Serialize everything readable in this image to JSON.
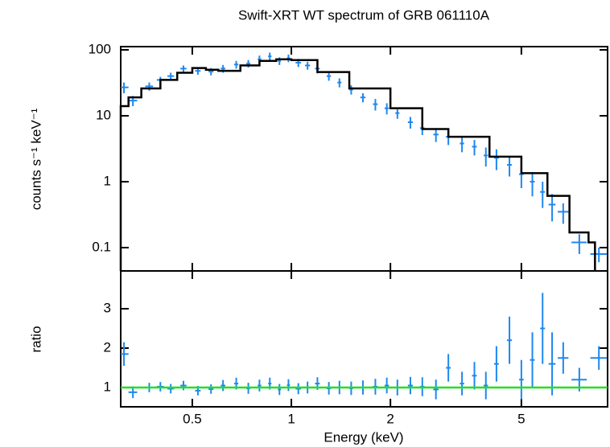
{
  "chart_data": [
    {
      "type": "spectrum",
      "title": "Swift-XRT WT spectrum of GRB 061110A",
      "ylabel": "counts s⁻¹ keV⁻¹",
      "xlog": true,
      "ylog": true,
      "ylim": [
        0.0443,
        112
      ],
      "yticks": [
        0.1,
        1,
        10,
        100
      ],
      "data": {
        "color": "#1e88f0",
        "x": [
          0.31,
          0.33,
          0.37,
          0.4,
          0.43,
          0.47,
          0.52,
          0.57,
          0.62,
          0.68,
          0.74,
          0.8,
          0.86,
          0.92,
          0.98,
          1.05,
          1.12,
          1.2,
          1.3,
          1.4,
          1.52,
          1.65,
          1.8,
          1.95,
          2.1,
          2.3,
          2.5,
          2.75,
          3.0,
          3.3,
          3.6,
          3.9,
          4.2,
          4.6,
          5.0,
          5.4,
          5.8,
          6.2,
          6.7,
          7.5,
          8.6
        ],
        "xerr": [
          0.01,
          0.01,
          0.01,
          0.01,
          0.01,
          0.01,
          0.01,
          0.01,
          0.01,
          0.01,
          0.01,
          0.01,
          0.01,
          0.01,
          0.01,
          0.02,
          0.02,
          0.02,
          0.02,
          0.02,
          0.02,
          0.03,
          0.03,
          0.03,
          0.03,
          0.04,
          0.04,
          0.05,
          0.05,
          0.05,
          0.06,
          0.06,
          0.07,
          0.08,
          0.08,
          0.09,
          0.1,
          0.15,
          0.25,
          0.4,
          0.5
        ],
        "values": [
          27,
          17,
          28,
          35,
          40,
          52,
          48,
          47,
          52,
          60,
          62,
          72,
          80,
          68,
          75,
          64,
          58,
          52,
          40,
          32,
          25,
          19,
          15,
          13,
          11,
          8,
          6.5,
          5.2,
          4.8,
          3.8,
          3.4,
          2.5,
          2.3,
          1.8,
          1.3,
          1.0,
          0.7,
          0.45,
          0.35,
          0.12,
          0.08
        ],
        "errors": [
          5,
          3,
          4,
          4,
          5,
          6,
          6,
          6,
          7,
          8,
          8,
          10,
          11,
          9,
          10,
          9,
          8,
          8,
          6,
          5,
          4,
          3,
          3,
          2.5,
          2,
          1.6,
          1.4,
          1.2,
          1.2,
          1.0,
          0.9,
          0.8,
          0.8,
          0.6,
          0.5,
          0.4,
          0.3,
          0.2,
          0.12,
          0.04,
          0.02
        ]
      },
      "model": {
        "color": "#000000",
        "x": [
          0.303,
          0.32,
          0.35,
          0.4,
          0.45,
          0.5,
          0.55,
          0.6,
          0.7,
          0.8,
          0.9,
          1.0,
          1.2,
          1.5,
          2.0,
          2.5,
          3,
          4,
          5,
          6,
          7,
          8
        ],
        "values": [
          14,
          19,
          26,
          35,
          45,
          53,
          50,
          48,
          58,
          68,
          72,
          70,
          46,
          26,
          13,
          6.3,
          4.8,
          2.4,
          1.35,
          0.61,
          0.17,
          0.12
        ]
      }
    },
    {
      "type": "ratio",
      "xlabel": "Energy (keV)",
      "ylabel": "ratio",
      "xlog": true,
      "xlim": [
        0.303,
        9.14
      ],
      "xticks": [
        0.5,
        1,
        2,
        5
      ],
      "ylim": [
        0.51,
        3.96
      ],
      "yticks": [
        1,
        2,
        3
      ],
      "reference": 1,
      "reference_color": "#22e022",
      "color": "#1e88f0",
      "values": [
        1.85,
        0.88,
        1.0,
        1.02,
        0.97,
        1.05,
        0.92,
        0.96,
        1.05,
        1.1,
        0.98,
        1.05,
        1.1,
        0.95,
        1.06,
        0.97,
        1.0,
        1.1,
        0.98,
        1.0,
        0.98,
        1.0,
        1.02,
        1.05,
        1.0,
        1.05,
        1.02,
        0.95,
        1.5,
        1.1,
        1.3,
        1.05,
        1.6,
        2.2,
        1.2,
        1.7,
        2.5,
        1.6,
        1.75,
        1.2,
        1.75
      ],
      "errors": [
        0.3,
        0.15,
        0.12,
        0.12,
        0.12,
        0.12,
        0.12,
        0.12,
        0.14,
        0.15,
        0.14,
        0.15,
        0.15,
        0.14,
        0.15,
        0.14,
        0.15,
        0.16,
        0.16,
        0.17,
        0.17,
        0.18,
        0.2,
        0.2,
        0.2,
        0.22,
        0.24,
        0.25,
        0.35,
        0.3,
        0.35,
        0.35,
        0.45,
        0.6,
        0.5,
        0.7,
        0.9,
        0.8,
        0.4,
        0.3,
        0.3
      ]
    }
  ]
}
